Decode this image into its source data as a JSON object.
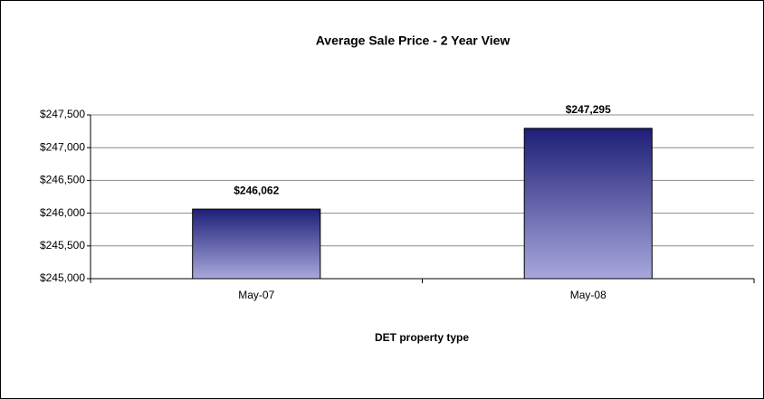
{
  "chart_data": {
    "type": "bar",
    "title": "Average Sale Price - 2 Year View",
    "x_label": "DET property type",
    "categories": [
      "May-07",
      "May-08"
    ],
    "values": [
      246062,
      247295
    ],
    "value_labels": [
      "$246,062",
      "$247,295"
    ],
    "color": "#1e1e78",
    "ylim": [
      245000,
      247500
    ],
    "yticks": [
      {
        "value": 245000,
        "label": "$245,000"
      },
      {
        "value": 245500,
        "label": "$245,500"
      },
      {
        "value": 246000,
        "label": "$246,000"
      },
      {
        "value": 246500,
        "label": "$246,500"
      },
      {
        "value": 247000,
        "label": "$247,000"
      },
      {
        "value": 247500,
        "label": "$247,500"
      }
    ],
    "grid": true
  }
}
